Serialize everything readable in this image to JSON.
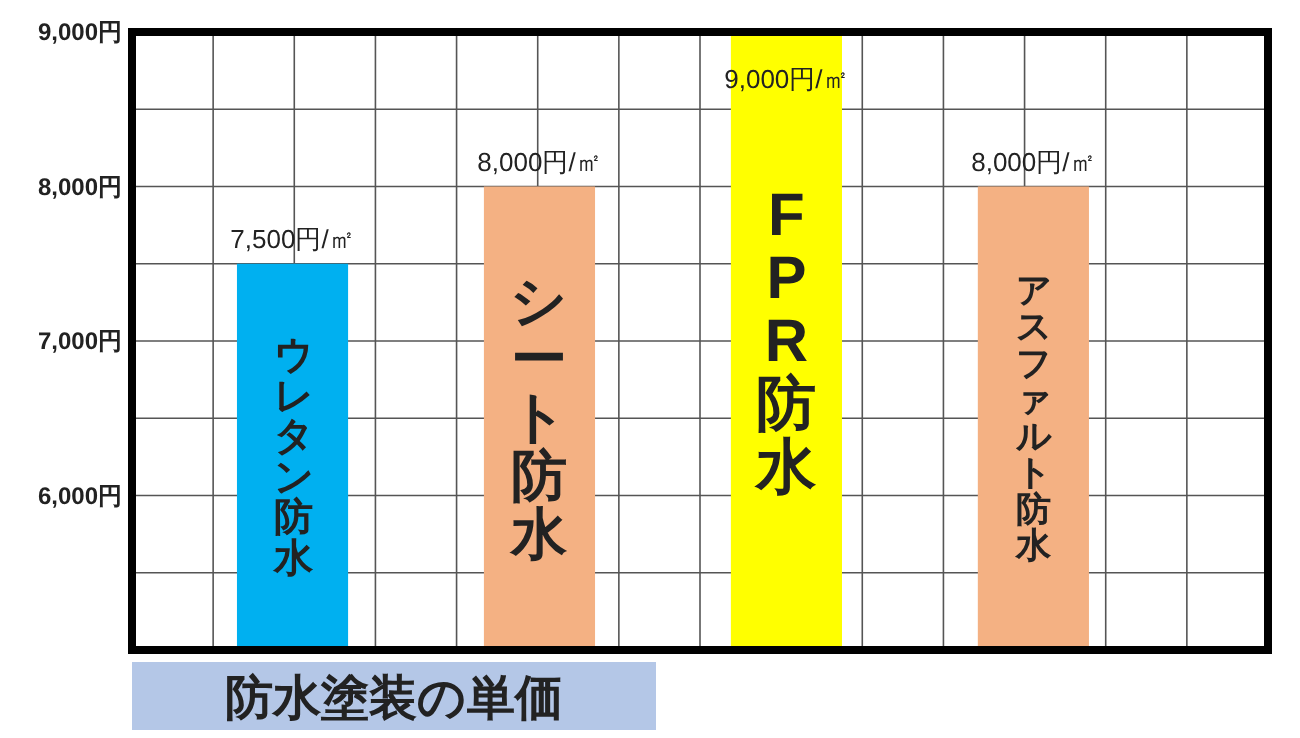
{
  "chart_data": {
    "type": "bar",
    "title": "防水塗装の単価",
    "categories": [
      "ウレタン防水",
      "シート防水",
      "FPR防水",
      "アスファルト防水"
    ],
    "values": [
      7500,
      8000,
      9000,
      8000
    ],
    "colors": [
      "#00b0f0",
      "#f4b183",
      "#ffff00",
      "#f4b183"
    ],
    "value_labels": [
      "7,500円/㎡",
      "8,000円/㎡",
      "9,000円/㎡",
      "8,000円/㎡"
    ],
    "ylim": [
      5000,
      9000
    ],
    "yticks": [
      {
        "value": 6000,
        "label": "6,000円"
      },
      {
        "value": 7000,
        "label": "7,000円"
      },
      {
        "value": 8000,
        "label": "8,000円"
      },
      {
        "value": 9000,
        "label": "9,000円"
      }
    ],
    "grid": true
  }
}
